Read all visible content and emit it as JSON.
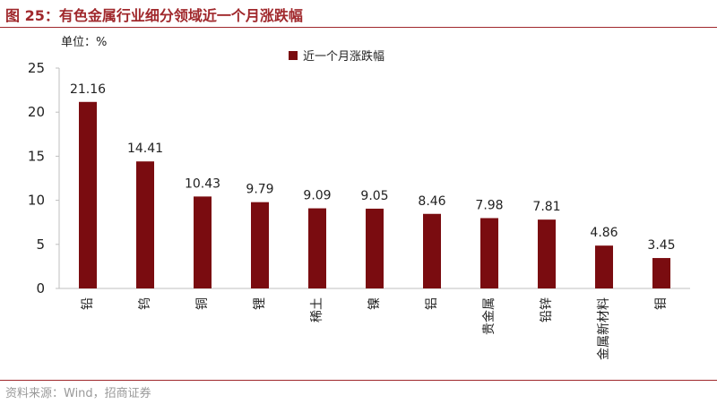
{
  "figure": {
    "title": "图 25：有色金属行业细分领域近一个月涨跌幅",
    "unit": "单位：%",
    "source": "资料来源：Wind，招商证券"
  },
  "chart_data": {
    "type": "bar",
    "categories": [
      "铅",
      "钨",
      "铜",
      "锂",
      "稀土",
      "镍",
      "铝",
      "贵金属",
      "铅锌",
      "金属新材料",
      "钼"
    ],
    "series": [
      {
        "name": "近一个月涨跌幅",
        "values": [
          21.16,
          14.41,
          10.43,
          9.79,
          9.09,
          9.05,
          8.46,
          7.98,
          7.81,
          4.86,
          3.45
        ]
      }
    ],
    "ylim": [
      0,
      25
    ],
    "yticks": [
      0,
      5,
      10,
      15,
      20,
      25
    ],
    "value_labels": [
      "21.16",
      "14.41",
      "10.43",
      "9.79",
      "9.09",
      "9.05",
      "8.46",
      "7.98",
      "7.81",
      "4.86",
      "3.45"
    ],
    "grid": false,
    "legend": "top-center",
    "bar_color": "#7a0c10"
  }
}
